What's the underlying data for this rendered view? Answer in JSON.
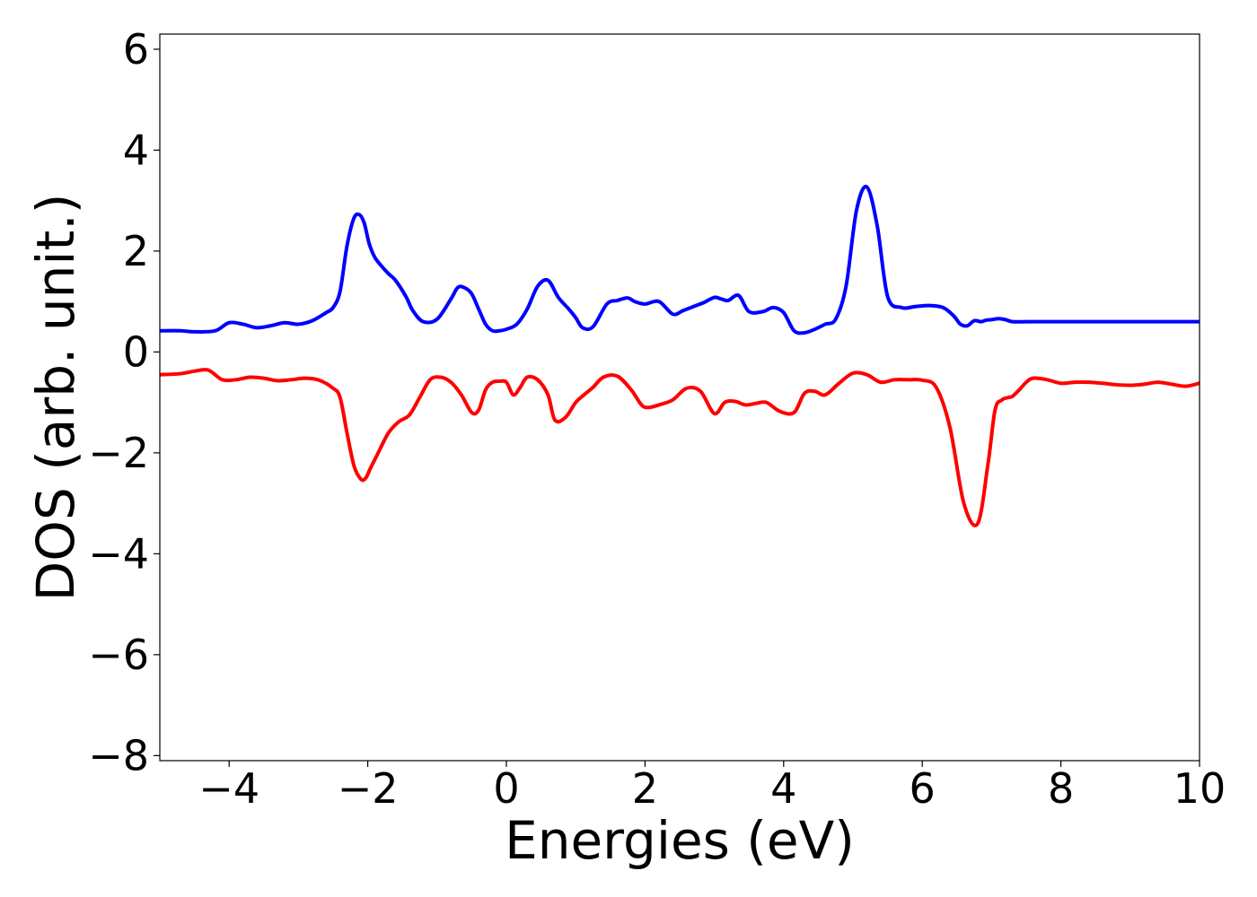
{
  "chart_data": {
    "type": "line",
    "title": "",
    "xlabel": "Energies (eV)",
    "ylabel": "DOS (arb. unit.)",
    "xlim": [
      -5,
      10
    ],
    "ylim": [
      -8.1,
      6.3
    ],
    "xticks": [
      -4,
      -2,
      0,
      2,
      4,
      6,
      8,
      10
    ],
    "yticks": [
      -8,
      -6,
      -4,
      -2,
      0,
      2,
      4,
      6
    ],
    "xtick_labels": [
      "−4",
      "−2",
      "0",
      "2",
      "4",
      "6",
      "8",
      "10"
    ],
    "ytick_labels": [
      "−8",
      "−6",
      "−4",
      "−2",
      "0",
      "2",
      "4",
      "6"
    ],
    "grid": false,
    "series": [
      {
        "color": "#0000ff",
        "x": [
          -5.0,
          -4.7,
          -4.5,
          -4.2,
          -4.0,
          -3.8,
          -3.6,
          -3.4,
          -3.2,
          -3.0,
          -2.8,
          -2.6,
          -2.5,
          -2.4,
          -2.3,
          -2.2,
          -2.12,
          -2.05,
          -1.98,
          -1.9,
          -1.8,
          -1.7,
          -1.6,
          -1.45,
          -1.35,
          -1.2,
          -1.0,
          -0.8,
          -0.7,
          -0.6,
          -0.5,
          -0.4,
          -0.3,
          -0.2,
          -0.1,
          0.0,
          0.15,
          0.3,
          0.45,
          0.6,
          0.75,
          0.9,
          1.0,
          1.1,
          1.25,
          1.45,
          1.6,
          1.75,
          1.85,
          2.0,
          2.2,
          2.4,
          2.55,
          2.7,
          2.85,
          3.0,
          3.1,
          3.2,
          3.35,
          3.5,
          3.7,
          3.85,
          4.0,
          4.15,
          4.3,
          4.45,
          4.6,
          4.75,
          4.9,
          5.05,
          5.2,
          5.35,
          5.5,
          5.7,
          5.9,
          6.1,
          6.3,
          6.45,
          6.55,
          6.65,
          6.75,
          6.85,
          6.92,
          7.0,
          7.1,
          7.2,
          7.3,
          7.5,
          7.7,
          7.9,
          8.1,
          8.3,
          8.5,
          8.65,
          8.8,
          8.95,
          9.1,
          9.3,
          9.5,
          9.7,
          9.85,
          10.0
        ],
        "y": [
          0.42,
          0.42,
          0.4,
          0.42,
          0.58,
          0.55,
          0.48,
          0.52,
          0.58,
          0.55,
          0.62,
          0.78,
          0.88,
          1.2,
          2.1,
          2.65,
          2.72,
          2.55,
          2.15,
          1.88,
          1.7,
          1.55,
          1.42,
          1.1,
          0.82,
          0.6,
          0.65,
          1.05,
          1.28,
          1.27,
          1.15,
          0.85,
          0.55,
          0.42,
          0.42,
          0.45,
          0.55,
          0.85,
          1.3,
          1.42,
          1.08,
          0.85,
          0.68,
          0.48,
          0.5,
          0.95,
          1.02,
          1.07,
          1.0,
          0.95,
          1.0,
          0.75,
          0.82,
          0.9,
          0.98,
          1.08,
          1.05,
          1.02,
          1.12,
          0.8,
          0.8,
          0.88,
          0.78,
          0.42,
          0.38,
          0.45,
          0.55,
          0.65,
          1.3,
          2.8,
          3.27,
          2.5,
          1.1,
          0.88,
          0.9,
          0.92,
          0.88,
          0.72,
          0.55,
          0.52,
          0.62,
          0.6,
          0.63,
          0.64,
          0.66,
          0.64,
          0.6,
          0.6,
          0.6,
          0.6,
          0.6,
          0.6,
          0.6,
          0.6,
          0.6,
          0.6,
          0.6,
          0.6,
          0.6,
          0.6,
          0.6,
          0.6
        ]
      },
      {
        "color": "#ff0000",
        "x": [
          -5.0,
          -4.7,
          -4.5,
          -4.3,
          -4.1,
          -3.9,
          -3.7,
          -3.5,
          -3.3,
          -3.1,
          -2.9,
          -2.7,
          -2.5,
          -2.4,
          -2.3,
          -2.2,
          -2.1,
          -2.03,
          -1.96,
          -1.85,
          -1.7,
          -1.55,
          -1.4,
          -1.25,
          -1.1,
          -0.95,
          -0.8,
          -0.65,
          -0.5,
          -0.4,
          -0.3,
          -0.2,
          -0.1,
          0.0,
          0.1,
          0.2,
          0.3,
          0.45,
          0.6,
          0.7,
          0.85,
          1.0,
          1.12,
          1.25,
          1.4,
          1.6,
          1.8,
          1.95,
          2.05,
          2.2,
          2.4,
          2.6,
          2.8,
          3.0,
          3.15,
          3.3,
          3.45,
          3.6,
          3.75,
          3.95,
          4.15,
          4.3,
          4.45,
          4.6,
          4.8,
          5.0,
          5.2,
          5.4,
          5.6,
          5.8,
          6.0,
          6.2,
          6.4,
          6.6,
          6.8,
          6.95,
          7.05,
          7.15,
          7.25,
          7.3,
          7.4,
          7.5,
          7.6,
          7.8,
          8.0,
          8.2,
          8.4,
          8.6,
          8.8,
          9.0,
          9.2,
          9.4,
          9.6,
          9.8,
          10.0
        ],
        "y": [
          -0.45,
          -0.43,
          -0.38,
          -0.36,
          -0.55,
          -0.55,
          -0.5,
          -0.52,
          -0.57,
          -0.55,
          -0.52,
          -0.56,
          -0.72,
          -0.9,
          -1.6,
          -2.25,
          -2.52,
          -2.5,
          -2.3,
          -2.0,
          -1.6,
          -1.38,
          -1.25,
          -0.9,
          -0.55,
          -0.5,
          -0.6,
          -0.85,
          -1.2,
          -1.15,
          -0.75,
          -0.6,
          -0.58,
          -0.6,
          -0.85,
          -0.7,
          -0.5,
          -0.55,
          -0.85,
          -1.35,
          -1.3,
          -1.0,
          -0.85,
          -0.7,
          -0.5,
          -0.48,
          -0.75,
          -1.05,
          -1.1,
          -1.05,
          -0.95,
          -0.72,
          -0.78,
          -1.22,
          -1.0,
          -0.98,
          -1.05,
          -1.02,
          -1.0,
          -1.18,
          -1.2,
          -0.82,
          -0.78,
          -0.85,
          -0.62,
          -0.42,
          -0.45,
          -0.6,
          -0.55,
          -0.55,
          -0.56,
          -0.7,
          -1.5,
          -3.0,
          -3.4,
          -2.2,
          -1.15,
          -0.95,
          -0.9,
          -0.88,
          -0.75,
          -0.6,
          -0.52,
          -0.55,
          -0.62,
          -0.6,
          -0.6,
          -0.62,
          -0.65,
          -0.66,
          -0.64,
          -0.6,
          -0.64,
          -0.68,
          -0.62
        ]
      }
    ]
  }
}
